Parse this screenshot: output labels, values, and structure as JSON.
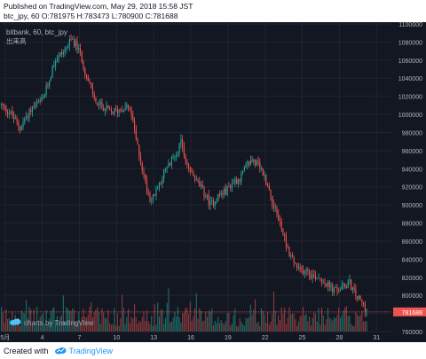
{
  "header": {
    "published_line": "Published on TradingView.com, May 29, 2018 15:58 JST",
    "ohlc_line": "btc_jpy, 60 O:781975 H:783473 L:780900 C:781688"
  },
  "chart_header": {
    "symbol_line": "bitbank, 60, btc_jpy",
    "volume_label": "出来高"
  },
  "watermark": {
    "text": "charts by TradingView"
  },
  "footer": {
    "created_text": "Created with",
    "brand_text": "TradingView"
  },
  "colors": {
    "background": "#131722",
    "up": "#26a69a",
    "down": "#ef5350",
    "up_volume": "#1e6e66",
    "down_volume": "#8a3b3d",
    "grid": "#1f2430",
    "text": "#b2b5be",
    "price_line": "#ef5350",
    "price_tag": "#ef5350",
    "brand": "#2196f3"
  },
  "chart_data": {
    "type": "candlestick",
    "symbol": "btc_jpy",
    "exchange": "bitbank",
    "interval": "60",
    "last_price": "781688",
    "ohlc": {
      "open": 781975,
      "high": 783473,
      "low": 780900,
      "close": 781688
    },
    "ylim": [
      760000,
      1100000
    ],
    "y_ticks": [
      760000,
      780000,
      800000,
      820000,
      840000,
      860000,
      880000,
      900000,
      920000,
      940000,
      960000,
      980000,
      1000000,
      1020000,
      1040000,
      1060000,
      1080000,
      1100000
    ],
    "y_tick_labels": [
      "760000",
      "780000",
      "800000",
      "820000",
      "840000",
      "860000",
      "880000",
      "900000",
      "920000",
      "940000",
      "960000",
      "980000",
      "1000000",
      "1020000",
      "1040000",
      "1060000",
      "1080000",
      "1100000"
    ],
    "x_ticks": [
      {
        "day": 0,
        "label": "5月"
      },
      {
        "day": 3,
        "label": "4"
      },
      {
        "day": 6,
        "label": "7"
      },
      {
        "day": 9,
        "label": "10"
      },
      {
        "day": 12,
        "label": "13"
      },
      {
        "day": 15,
        "label": "16"
      },
      {
        "day": 18,
        "label": "19"
      },
      {
        "day": 21,
        "label": "22"
      },
      {
        "day": 24,
        "label": "25"
      },
      {
        "day": 27,
        "label": "28"
      },
      {
        "day": 30,
        "label": "31"
      }
    ],
    "x_range": [
      -0.2,
      31.2
    ],
    "grid": true,
    "price_path": [
      [
        -0.3,
        1010000
      ],
      [
        0.5,
        1000000
      ],
      [
        1.2,
        985000
      ],
      [
        2.0,
        1005000
      ],
      [
        3.0,
        1015000
      ],
      [
        3.5,
        1035000
      ],
      [
        4.0,
        1060000
      ],
      [
        4.6,
        1068000
      ],
      [
        5.0,
        1075000
      ],
      [
        5.4,
        1083000
      ],
      [
        5.8,
        1075000
      ],
      [
        6.2,
        1062000
      ],
      [
        6.6,
        1040000
      ],
      [
        7.0,
        1025000
      ],
      [
        7.5,
        1010000
      ],
      [
        8.0,
        1008000
      ],
      [
        8.5,
        1002000
      ],
      [
        9.2,
        1005000
      ],
      [
        9.8,
        1010000
      ],
      [
        10.2,
        1000000
      ],
      [
        10.6,
        970000
      ],
      [
        11.0,
        945000
      ],
      [
        11.4,
        920000
      ],
      [
        11.8,
        905000
      ],
      [
        12.2,
        915000
      ],
      [
        12.8,
        935000
      ],
      [
        13.3,
        945000
      ],
      [
        13.8,
        958000
      ],
      [
        14.2,
        968000
      ],
      [
        14.6,
        950000
      ],
      [
        15.0,
        935000
      ],
      [
        15.5,
        925000
      ],
      [
        16.0,
        915000
      ],
      [
        16.6,
        900000
      ],
      [
        17.2,
        910000
      ],
      [
        17.8,
        915000
      ],
      [
        18.4,
        925000
      ],
      [
        19.0,
        930000
      ],
      [
        19.6,
        945000
      ],
      [
        20.0,
        950000
      ],
      [
        20.5,
        942000
      ],
      [
        21.0,
        930000
      ],
      [
        21.4,
        912000
      ],
      [
        21.8,
        895000
      ],
      [
        22.2,
        880000
      ],
      [
        22.6,
        862000
      ],
      [
        23.0,
        845000
      ],
      [
        23.4,
        835000
      ],
      [
        23.8,
        825000
      ],
      [
        24.3,
        830000
      ],
      [
        24.8,
        822000
      ],
      [
        25.4,
        820000
      ],
      [
        26.0,
        812000
      ],
      [
        26.6,
        805000
      ],
      [
        27.2,
        808000
      ],
      [
        27.8,
        814000
      ],
      [
        28.3,
        800000
      ],
      [
        28.8,
        792000
      ],
      [
        29.0,
        788000
      ],
      [
        29.3,
        781688
      ]
    ]
  }
}
